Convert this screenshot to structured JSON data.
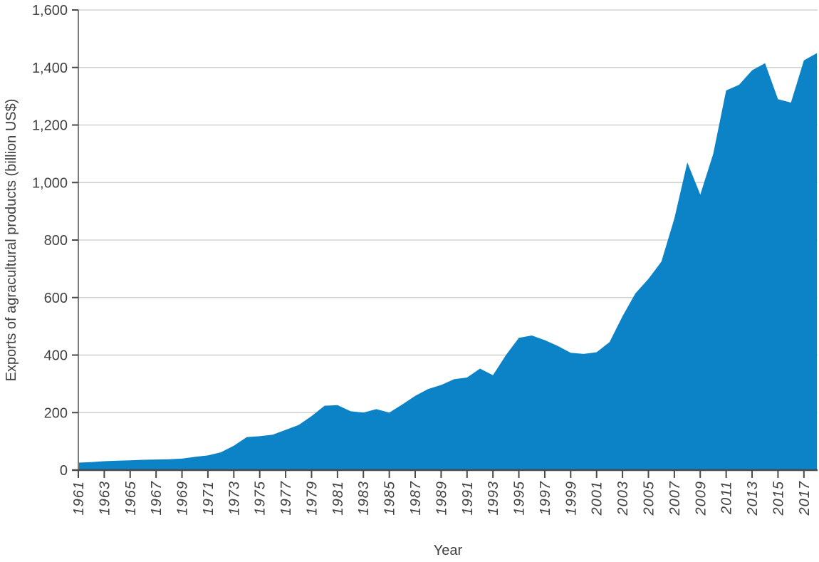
{
  "chart_data": {
    "type": "area",
    "title": "",
    "xlabel": "Year",
    "ylabel": "Exports of agracultural products (billion US$)",
    "series_name": "Exports of agricultural products (billion US$)",
    "x": [
      1961,
      1962,
      1963,
      1964,
      1965,
      1966,
      1967,
      1968,
      1969,
      1970,
      1971,
      1972,
      1973,
      1974,
      1975,
      1976,
      1977,
      1978,
      1979,
      1980,
      1981,
      1982,
      1983,
      1984,
      1985,
      1986,
      1987,
      1988,
      1989,
      1990,
      1991,
      1992,
      1993,
      1994,
      1995,
      1996,
      1997,
      1998,
      1999,
      2000,
      2001,
      2002,
      2003,
      2004,
      2005,
      2006,
      2007,
      2008,
      2009,
      2010,
      2011,
      2012,
      2013,
      2014,
      2015,
      2016,
      2017,
      2018
    ],
    "values": [
      26,
      28,
      31,
      33,
      34,
      36,
      37,
      38,
      40,
      46,
      51,
      62,
      85,
      115,
      118,
      123,
      140,
      157,
      188,
      224,
      226,
      205,
      200,
      212,
      200,
      228,
      258,
      282,
      296,
      316,
      322,
      353,
      330,
      400,
      460,
      468,
      452,
      432,
      408,
      404,
      410,
      445,
      535,
      615,
      665,
      725,
      875,
      1070,
      958,
      1100,
      1320,
      1340,
      1390,
      1415,
      1290,
      1278,
      1425,
      1450
    ],
    "xlim": [
      1961,
      2018
    ],
    "ylim": [
      0,
      1600
    ],
    "xticks": [
      1961,
      1963,
      1965,
      1967,
      1969,
      1971,
      1973,
      1975,
      1977,
      1979,
      1981,
      1983,
      1985,
      1987,
      1989,
      1991,
      1993,
      1995,
      1997,
      1999,
      2001,
      2003,
      2005,
      2007,
      2009,
      2011,
      2013,
      2015,
      2017
    ],
    "xtick_labels": [
      "1961",
      "1963",
      "1965",
      "1967",
      "1969",
      "1971",
      "1973",
      "1975",
      "1977",
      "1979",
      "1981",
      "1983",
      "1985",
      "1987",
      "1989",
      "1991",
      "1993",
      "1995",
      "1997",
      "1999",
      "2001",
      "2003",
      "2005",
      "2007",
      "2009",
      "2011",
      "2013",
      "2015",
      "2017"
    ],
    "yticks": [
      0,
      200,
      400,
      600,
      800,
      1000,
      1200,
      1400,
      1600
    ],
    "ytick_labels": [
      "0",
      "200",
      "400",
      "600",
      "800",
      "1,000",
      "1,200",
      "1,400",
      "1,600"
    ],
    "grid": "horizontal",
    "legend": "none",
    "colors": {
      "area": "#0b83c6",
      "text": "#414141",
      "grid": "#c9c9c9",
      "spine": "#7a7a7a",
      "tick": "#4a4a4a",
      "background": "#ffffff"
    }
  }
}
